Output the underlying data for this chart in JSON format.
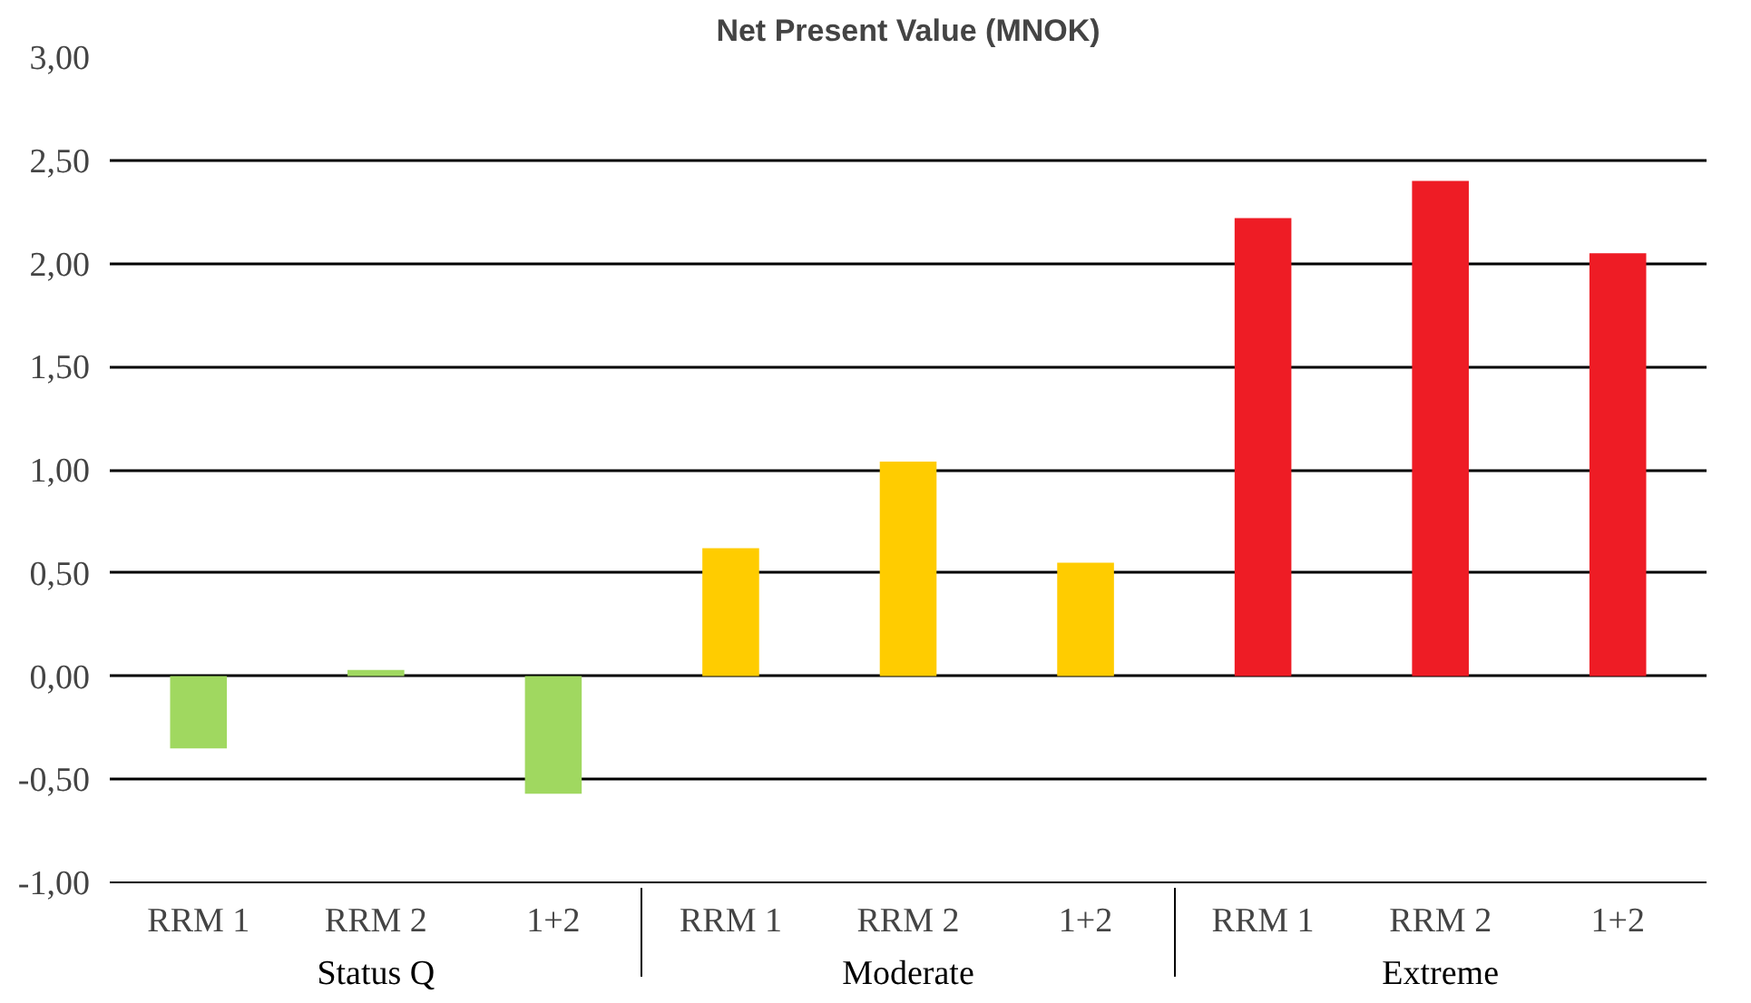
{
  "chart_data": {
    "type": "bar",
    "title": "Net Present Value (MNOK)",
    "categories": [
      "RRM 1",
      "RRM 2",
      "1+2",
      "RRM 1",
      "RRM 2",
      "1+2",
      "RRM 1",
      "RRM 2",
      "1+2"
    ],
    "values": [
      -0.35,
      0.03,
      -0.57,
      0.62,
      1.04,
      0.55,
      2.22,
      2.4,
      2.05
    ],
    "colors": [
      "#a0d860",
      "#a0d860",
      "#a0d860",
      "#ffcc00",
      "#ffcc00",
      "#ffcc00",
      "#ee1c25",
      "#ee1c25",
      "#ee1c25"
    ],
    "annotations": [
      "Status Q",
      "Moderate",
      "Extreme"
    ],
    "ylim": [
      -1,
      3
    ],
    "yticks": [
      {
        "value": -1,
        "label": "-1,00"
      },
      {
        "value": -0.5,
        "label": "-0,50"
      },
      {
        "value": 0,
        "label": "0,00"
      },
      {
        "value": 0.5,
        "label": "0,50"
      },
      {
        "value": 1,
        "label": "1,00"
      },
      {
        "value": 1.5,
        "label": "1,50"
      },
      {
        "value": 2,
        "label": "2,00"
      },
      {
        "value": 2.5,
        "label": "2,50"
      },
      {
        "value": 3,
        "label": "3,00"
      }
    ],
    "grid": "y"
  }
}
